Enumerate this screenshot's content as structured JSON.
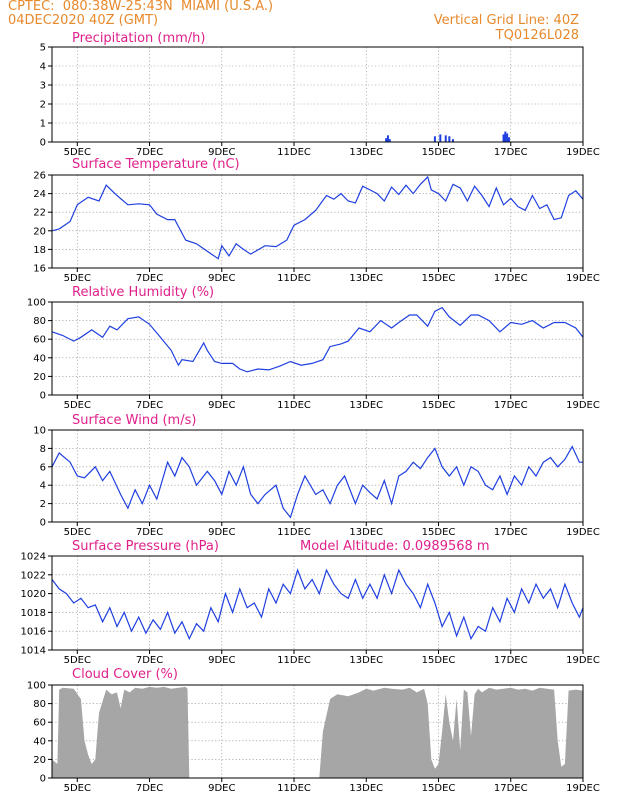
{
  "header": {
    "source": "CPTEC:",
    "location": "080:38W-25:43N  MIAMI (U.S.A.)",
    "run_date": "04DEC2020 40Z (GMT)",
    "grid_line": "Vertical Grid Line: 40Z",
    "model": "TQ0126L028"
  },
  "colors": {
    "title": "#e0208a",
    "header": "#e8892c",
    "line": "#1f3fe0",
    "cloud": "#a6a6a6"
  },
  "chart_data": [
    {
      "type": "bar",
      "title": "Precipitation (mm/h)",
      "x_tick_labels": [
        "5DEC",
        "7DEC",
        "9DEC",
        "11DEC",
        "13DEC",
        "15DEC",
        "17DEC",
        "19DEC"
      ],
      "x_tick_positions": [
        5,
        7,
        9,
        11,
        13,
        15,
        17,
        19
      ],
      "xlim": [
        4.3,
        19
      ],
      "ylim": [
        0,
        5
      ],
      "y_ticks": [
        0,
        1,
        2,
        3,
        4,
        5
      ],
      "x": [
        13.55,
        13.6,
        13.65,
        14.9,
        15.05,
        15.2,
        15.3,
        15.4,
        16.8,
        16.85,
        16.9,
        16.95
      ],
      "values": [
        0.2,
        0.35,
        0.15,
        0.3,
        0.4,
        0.35,
        0.3,
        0.15,
        0.4,
        0.55,
        0.45,
        0.25
      ]
    },
    {
      "type": "line",
      "title": "Surface Temperature (nC)",
      "x_tick_labels": [
        "5DEC",
        "7DEC",
        "9DEC",
        "11DEC",
        "13DEC",
        "15DEC",
        "17DEC",
        "19DEC"
      ],
      "x_tick_positions": [
        5,
        7,
        9,
        11,
        13,
        15,
        17,
        19
      ],
      "xlim": [
        4.3,
        19
      ],
      "ylim": [
        16,
        26
      ],
      "y_ticks": [
        16,
        18,
        20,
        22,
        24,
        26
      ],
      "x": [
        4.3,
        4.5,
        4.8,
        5.0,
        5.3,
        5.6,
        5.8,
        6.1,
        6.4,
        6.7,
        7.0,
        7.2,
        7.5,
        7.7,
        8.0,
        8.3,
        8.6,
        8.9,
        9.0,
        9.2,
        9.4,
        9.6,
        9.8,
        10.2,
        10.5,
        10.8,
        11.0,
        11.3,
        11.6,
        11.9,
        12.1,
        12.3,
        12.5,
        12.7,
        12.9,
        13.1,
        13.3,
        13.5,
        13.7,
        13.9,
        14.1,
        14.3,
        14.5,
        14.7,
        14.8,
        15.0,
        15.2,
        15.4,
        15.6,
        15.8,
        16.0,
        16.2,
        16.4,
        16.6,
        16.8,
        17.0,
        17.2,
        17.4,
        17.6,
        17.8,
        18.0,
        18.2,
        18.4,
        18.6,
        18.8,
        19.0
      ],
      "values": [
        20,
        20.2,
        21,
        22.8,
        23.6,
        23.2,
        24.9,
        23.8,
        22.8,
        22.9,
        22.8,
        21.8,
        21.2,
        21.2,
        19,
        18.6,
        17.8,
        17,
        18.4,
        17.3,
        18.6,
        18,
        17.5,
        18.4,
        18.3,
        19,
        20.6,
        21.2,
        22.2,
        23.8,
        23.4,
        24,
        23.2,
        23,
        24.8,
        24.4,
        24,
        23.2,
        24.7,
        23.9,
        24.9,
        24,
        25,
        25.8,
        24.4,
        24,
        23.2,
        25,
        24.6,
        23.2,
        24.8,
        23.8,
        22.6,
        24.6,
        22.8,
        23.5,
        22.6,
        22.2,
        23.8,
        22.4,
        22.8,
        21.2,
        21.4,
        23.8,
        24.3,
        23.4
      ]
    },
    {
      "type": "line",
      "title": "Relative Humidity (%)",
      "x_tick_labels": [
        "5DEC",
        "7DEC",
        "9DEC",
        "11DEC",
        "13DEC",
        "15DEC",
        "17DEC",
        "19DEC"
      ],
      "x_tick_positions": [
        5,
        7,
        9,
        11,
        13,
        15,
        17,
        19
      ],
      "xlim": [
        4.3,
        19
      ],
      "ylim": [
        0,
        100
      ],
      "y_ticks": [
        0,
        20,
        40,
        60,
        80,
        100
      ],
      "x": [
        4.3,
        4.6,
        4.9,
        5.1,
        5.4,
        5.7,
        5.9,
        6.1,
        6.4,
        6.7,
        7.0,
        7.3,
        7.6,
        7.8,
        7.9,
        8.2,
        8.5,
        8.6,
        8.8,
        9.0,
        9.3,
        9.5,
        9.7,
        10.0,
        10.3,
        10.6,
        10.9,
        11.2,
        11.5,
        11.8,
        12.0,
        12.3,
        12.5,
        12.8,
        13.1,
        13.4,
        13.7,
        13.9,
        14.2,
        14.4,
        14.7,
        14.9,
        15.1,
        15.3,
        15.6,
        15.9,
        16.1,
        16.4,
        16.7,
        17.0,
        17.3,
        17.6,
        17.9,
        18.2,
        18.5,
        18.8,
        19.0
      ],
      "values": [
        68,
        64,
        58,
        62,
        70,
        62,
        74,
        70,
        82,
        84,
        76,
        62,
        48,
        32,
        38,
        36,
        56,
        48,
        36,
        34,
        34,
        28,
        25,
        28,
        27,
        31,
        36,
        32,
        34,
        38,
        52,
        55,
        58,
        72,
        68,
        80,
        72,
        78,
        86,
        86,
        74,
        90,
        94,
        84,
        75,
        86,
        86,
        80,
        68,
        78,
        76,
        80,
        72,
        78,
        78,
        72,
        62
      ]
    },
    {
      "type": "line",
      "title": "Surface Wind (m/s)",
      "x_tick_labels": [
        "5DEC",
        "7DEC",
        "9DEC",
        "11DEC",
        "13DEC",
        "15DEC",
        "17DEC",
        "19DEC"
      ],
      "x_tick_positions": [
        5,
        7,
        9,
        11,
        13,
        15,
        17,
        19
      ],
      "xlim": [
        4.3,
        19
      ],
      "ylim": [
        0,
        10
      ],
      "y_ticks": [
        0,
        2,
        4,
        6,
        8,
        10
      ],
      "x": [
        4.3,
        4.5,
        4.8,
        5.0,
        5.2,
        5.5,
        5.7,
        5.9,
        6.2,
        6.4,
        6.6,
        6.8,
        7.0,
        7.2,
        7.5,
        7.7,
        7.9,
        8.1,
        8.3,
        8.6,
        8.8,
        9.0,
        9.2,
        9.4,
        9.6,
        9.8,
        10.0,
        10.2,
        10.5,
        10.7,
        10.9,
        11.1,
        11.3,
        11.6,
        11.8,
        12.0,
        12.2,
        12.4,
        12.7,
        12.9,
        13.1,
        13.3,
        13.5,
        13.7,
        13.9,
        14.1,
        14.3,
        14.5,
        14.7,
        14.9,
        15.1,
        15.3,
        15.5,
        15.7,
        15.9,
        16.1,
        16.3,
        16.5,
        16.7,
        16.9,
        17.1,
        17.3,
        17.5,
        17.7,
        17.9,
        18.1,
        18.3,
        18.5,
        18.7,
        18.9,
        19.0
      ],
      "values": [
        6,
        7.5,
        6.5,
        5,
        4.8,
        6,
        4.5,
        5.5,
        3,
        1.5,
        3.5,
        2,
        4,
        2.5,
        6.5,
        5,
        7,
        6,
        4,
        5.5,
        4.5,
        3,
        5.5,
        4,
        6,
        3,
        2,
        3,
        4,
        1.5,
        0.5,
        3,
        5,
        3,
        3.5,
        2,
        4,
        5,
        2,
        4,
        3.2,
        2.5,
        4.5,
        2,
        5,
        5.5,
        6.5,
        5.8,
        7,
        8,
        6,
        5,
        6,
        4,
        6,
        5.5,
        4,
        3.5,
        5,
        3,
        5,
        4,
        6,
        5,
        6.5,
        7,
        6,
        6.8,
        8.2,
        6.5,
        6.5
      ]
    },
    {
      "type": "line",
      "title": "Surface Pressure (hPa)",
      "annotation": "Model Altitude: 0.0989568 m",
      "x_tick_labels": [
        "5DEC",
        "7DEC",
        "9DEC",
        "11DEC",
        "13DEC",
        "15DEC",
        "17DEC",
        "19DEC"
      ],
      "x_tick_positions": [
        5,
        7,
        9,
        11,
        13,
        15,
        17,
        19
      ],
      "xlim": [
        4.3,
        19
      ],
      "ylim": [
        1014,
        1024
      ],
      "y_ticks": [
        1014,
        1016,
        1018,
        1020,
        1022,
        1024
      ],
      "x": [
        4.3,
        4.5,
        4.7,
        4.9,
        5.1,
        5.3,
        5.5,
        5.7,
        5.9,
        6.1,
        6.3,
        6.5,
        6.7,
        6.9,
        7.1,
        7.3,
        7.5,
        7.7,
        7.9,
        8.1,
        8.3,
        8.5,
        8.7,
        8.9,
        9.1,
        9.3,
        9.5,
        9.7,
        9.9,
        10.1,
        10.3,
        10.5,
        10.7,
        10.9,
        11.1,
        11.3,
        11.5,
        11.7,
        11.9,
        12.1,
        12.3,
        12.5,
        12.7,
        12.9,
        13.1,
        13.3,
        13.5,
        13.7,
        13.9,
        14.1,
        14.3,
        14.5,
        14.7,
        14.9,
        15.1,
        15.3,
        15.5,
        15.7,
        15.9,
        16.1,
        16.3,
        16.5,
        16.7,
        16.9,
        17.1,
        17.3,
        17.5,
        17.7,
        17.9,
        18.1,
        18.3,
        18.5,
        18.7,
        18.9,
        19.0
      ],
      "values": [
        1021.5,
        1020.5,
        1020,
        1019,
        1019.5,
        1018.5,
        1018.8,
        1017,
        1018.5,
        1016.5,
        1018,
        1016,
        1017.5,
        1015.8,
        1017.2,
        1016.2,
        1018,
        1015.8,
        1017,
        1015.2,
        1016.8,
        1016,
        1018.5,
        1017,
        1020,
        1018,
        1020.5,
        1018.5,
        1019,
        1017.5,
        1020.5,
        1019,
        1021,
        1020,
        1022.5,
        1020.5,
        1021.5,
        1020,
        1022.5,
        1021,
        1020,
        1019.5,
        1021.5,
        1019.5,
        1021,
        1019.5,
        1022,
        1020,
        1022.5,
        1021,
        1020,
        1018.5,
        1021,
        1019,
        1016.5,
        1018,
        1015.5,
        1017.5,
        1015.2,
        1016.5,
        1016,
        1018.5,
        1017,
        1019.5,
        1018,
        1020.5,
        1019,
        1021,
        1019.5,
        1020.5,
        1018.5,
        1021,
        1019,
        1017.5,
        1018.5
      ]
    },
    {
      "type": "area",
      "title": "Cloud Cover (%)",
      "x_tick_labels": [
        "5DEC",
        "7DEC",
        "9DEC",
        "11DEC",
        "13DEC",
        "15DEC",
        "17DEC",
        "19DEC"
      ],
      "x_tick_positions": [
        5,
        7,
        9,
        11,
        13,
        15,
        17,
        19
      ],
      "xlim": [
        4.3,
        19
      ],
      "ylim": [
        0,
        100
      ],
      "y_ticks": [
        0,
        20,
        40,
        60,
        80,
        100
      ],
      "x": [
        4.3,
        4.45,
        4.5,
        4.6,
        4.9,
        5.1,
        5.2,
        5.3,
        5.4,
        5.5,
        5.6,
        5.8,
        5.95,
        6.1,
        6.2,
        6.3,
        6.45,
        6.6,
        6.8,
        7.0,
        7.2,
        7.4,
        7.6,
        7.8,
        8.0,
        8.05,
        8.1,
        11.7,
        11.8,
        12.0,
        12.2,
        12.5,
        12.8,
        13.0,
        13.2,
        13.5,
        13.7,
        14.0,
        14.2,
        14.4,
        14.6,
        14.7,
        14.8,
        14.9,
        15.0,
        15.1,
        15.2,
        15.3,
        15.4,
        15.5,
        15.6,
        15.7,
        15.8,
        15.9,
        16.0,
        16.1,
        16.2,
        16.4,
        16.6,
        16.8,
        17.0,
        17.2,
        17.4,
        17.6,
        17.8,
        18.0,
        18.2,
        18.3,
        18.4,
        18.5,
        18.6,
        18.8,
        19.0
      ],
      "values": [
        20,
        15,
        95,
        97,
        96,
        85,
        40,
        25,
        15,
        20,
        70,
        95,
        90,
        92,
        75,
        95,
        92,
        97,
        96,
        98,
        97,
        98,
        96,
        97,
        98,
        96,
        0,
        0,
        50,
        85,
        90,
        88,
        92,
        96,
        94,
        97,
        96,
        95,
        97,
        92,
        96,
        80,
        20,
        10,
        15,
        50,
        90,
        60,
        40,
        85,
        30,
        95,
        92,
        45,
        90,
        96,
        92,
        97,
        95,
        96,
        97,
        95,
        96,
        94,
        97,
        96,
        95,
        40,
        12,
        15,
        94,
        95,
        94
      ]
    }
  ]
}
